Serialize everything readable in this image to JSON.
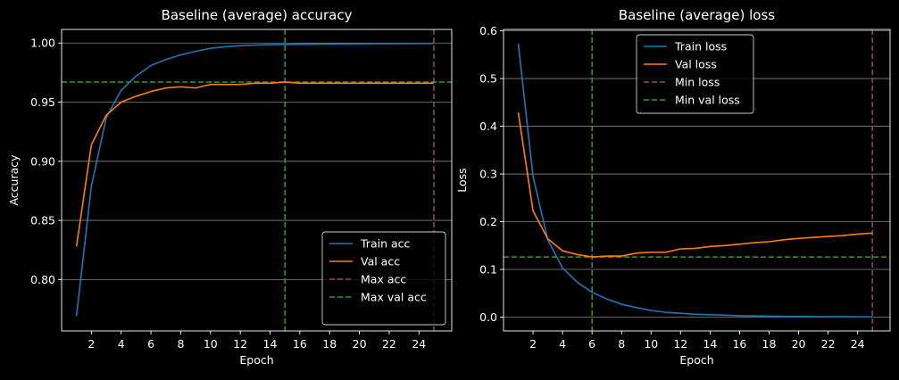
{
  "chart_data": [
    {
      "type": "line",
      "title": "Baseline (average) accuracy",
      "xlabel": "Epoch",
      "ylabel": "Accuracy",
      "xlim": [
        0,
        26.2
      ],
      "ylim": [
        0.7565,
        1.0115
      ],
      "xticks": [
        2,
        4,
        6,
        8,
        10,
        12,
        14,
        16,
        18,
        20,
        22,
        24
      ],
      "yticks": [
        0.8,
        0.85,
        0.9,
        0.95,
        1.0
      ],
      "ytick_labels": [
        "0.80",
        "0.85",
        "0.90",
        "0.95",
        "1.00"
      ],
      "grid": "horizontal",
      "legend_position": "lower-right",
      "x": [
        1,
        2,
        3,
        4,
        5,
        6,
        7,
        8,
        9,
        10,
        11,
        12,
        13,
        14,
        15,
        16,
        17,
        18,
        19,
        20,
        21,
        22,
        23,
        24,
        25
      ],
      "series": [
        {
          "name": "Train acc",
          "color": "#1f77b4",
          "style": "solid",
          "values": [
            0.769,
            0.879,
            0.937,
            0.96,
            0.972,
            0.981,
            0.986,
            0.99,
            0.993,
            0.9955,
            0.9968,
            0.9978,
            0.9983,
            0.9986,
            0.9988,
            0.999,
            0.9991,
            0.9992,
            0.9993,
            0.9994,
            0.9995,
            0.9995,
            0.9996,
            0.9996,
            0.9997
          ]
        },
        {
          "name": "Val acc",
          "color": "#ff7f0e",
          "style": "solid",
          "values": [
            0.828,
            0.914,
            0.939,
            0.95,
            0.955,
            0.959,
            0.962,
            0.963,
            0.962,
            0.965,
            0.965,
            0.965,
            0.966,
            0.966,
            0.967,
            0.966,
            0.966,
            0.966,
            0.966,
            0.966,
            0.966,
            0.966,
            0.966,
            0.966,
            0.966
          ]
        }
      ],
      "reference_lines": [
        {
          "name": "Max acc",
          "orientation": "vertical",
          "value": 25,
          "color": "#8a4f6e",
          "style": "dashed",
          "in_legend": true
        },
        {
          "name": "Max val acc",
          "orientation": "vertical",
          "value": 15,
          "color": "#2ca02c",
          "style": "dashed",
          "in_legend": true
        },
        {
          "name": "",
          "orientation": "horizontal",
          "value": 0.967,
          "color": "#2ca02c",
          "style": "dashed",
          "in_legend": false
        }
      ]
    },
    {
      "type": "line",
      "title": "Baseline (average) loss",
      "xlabel": "Epoch",
      "ylabel": "Loss",
      "xlim": [
        0,
        26.2
      ],
      "ylim": [
        -0.029,
        0.603
      ],
      "xticks": [
        2,
        4,
        6,
        8,
        10,
        12,
        14,
        16,
        18,
        20,
        22,
        24
      ],
      "yticks": [
        0.0,
        0.1,
        0.2,
        0.3,
        0.4,
        0.5,
        0.6
      ],
      "ytick_labels": [
        "0.0",
        "0.1",
        "0.2",
        "0.3",
        "0.4",
        "0.5",
        "0.6"
      ],
      "grid": "horizontal",
      "legend_position": "upper-center",
      "x": [
        1,
        2,
        3,
        4,
        5,
        6,
        7,
        8,
        9,
        10,
        11,
        12,
        13,
        14,
        15,
        16,
        17,
        18,
        19,
        20,
        21,
        22,
        23,
        24,
        25
      ],
      "series": [
        {
          "name": "Train loss",
          "color": "#1f77b4",
          "style": "solid",
          "values": [
            0.573,
            0.295,
            0.162,
            0.103,
            0.073,
            0.052,
            0.038,
            0.027,
            0.02,
            0.014,
            0.01,
            0.008,
            0.006,
            0.005,
            0.004,
            0.003,
            0.0025,
            0.002,
            0.0016,
            0.0013,
            0.0011,
            0.0009,
            0.0008,
            0.0007,
            0.0005
          ]
        },
        {
          "name": "Val loss",
          "color": "#ff7f0e",
          "style": "solid",
          "values": [
            0.429,
            0.223,
            0.164,
            0.139,
            0.131,
            0.126,
            0.128,
            0.128,
            0.134,
            0.136,
            0.136,
            0.143,
            0.144,
            0.148,
            0.15,
            0.153,
            0.156,
            0.158,
            0.162,
            0.165,
            0.167,
            0.169,
            0.171,
            0.174,
            0.176
          ]
        }
      ],
      "reference_lines": [
        {
          "name": "Min loss",
          "orientation": "vertical",
          "value": 25,
          "color": "#8a4f6e",
          "style": "dashed",
          "in_legend": true
        },
        {
          "name": "Min val loss",
          "orientation": "vertical",
          "value": 6,
          "color": "#2ca02c",
          "style": "dashed",
          "in_legend": true
        },
        {
          "name": "",
          "orientation": "horizontal",
          "value": 0.126,
          "color": "#2ca02c",
          "style": "dashed",
          "in_legend": false
        }
      ]
    }
  ]
}
